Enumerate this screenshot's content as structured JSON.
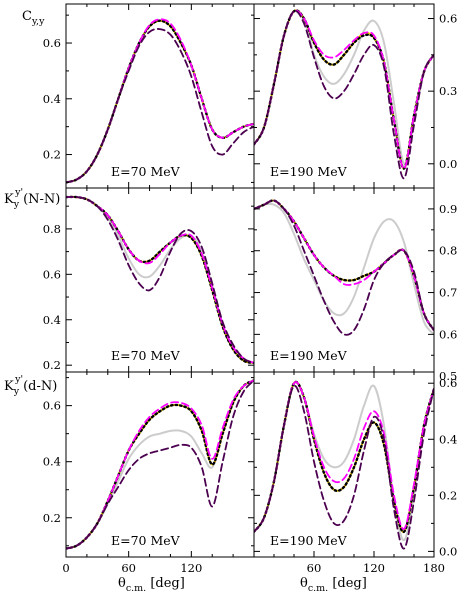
{
  "figure": {
    "xlabel_main": "θ",
    "xlabel_sub": "c.m.",
    "xlabel_unit": " [deg]",
    "row_labels": [
      {
        "main": "C",
        "sub": "y,y",
        "sup": "",
        "tail": ""
      },
      {
        "main": "K",
        "sub": "y",
        "sup": "y'",
        "tail": "(N-N)"
      },
      {
        "main": "K",
        "sub": "y",
        "sup": "y'",
        "tail": "(d-N)"
      }
    ]
  },
  "chart_data": [
    {
      "type": "line",
      "panel": "row1-left",
      "energy_label": "E=70 MeV",
      "xlim": [
        0,
        180
      ],
      "ylim": [
        0.08,
        0.74
      ],
      "xticks": [
        0,
        60,
        120
      ],
      "yticks": [
        0.2,
        0.4,
        0.6
      ],
      "ytick_side": "left",
      "x": [
        0,
        10,
        20,
        30,
        40,
        50,
        60,
        70,
        80,
        90,
        100,
        110,
        120,
        130,
        140,
        150,
        160,
        170,
        180
      ],
      "series": [
        {
          "color": "#cccccc",
          "dash": "solid",
          "values": [
            0.1,
            0.11,
            0.14,
            0.2,
            0.29,
            0.4,
            0.51,
            0.6,
            0.66,
            0.68,
            0.66,
            0.6,
            0.52,
            0.4,
            0.29,
            0.26,
            0.28,
            0.3,
            0.31
          ]
        },
        {
          "color": "#ffd700",
          "dash": "solid",
          "values": [
            0.1,
            0.11,
            0.14,
            0.2,
            0.29,
            0.4,
            0.51,
            0.6,
            0.66,
            0.68,
            0.66,
            0.6,
            0.52,
            0.4,
            0.29,
            0.26,
            0.28,
            0.3,
            0.31
          ]
        },
        {
          "color": "#000000",
          "dash": "dot",
          "values": [
            0.1,
            0.11,
            0.14,
            0.2,
            0.29,
            0.4,
            0.51,
            0.6,
            0.66,
            0.68,
            0.66,
            0.6,
            0.52,
            0.4,
            0.29,
            0.26,
            0.28,
            0.3,
            0.31
          ]
        },
        {
          "color": "#ff00ff",
          "dash": "dash",
          "values": [
            0.1,
            0.11,
            0.14,
            0.2,
            0.29,
            0.4,
            0.51,
            0.6,
            0.665,
            0.685,
            0.67,
            0.61,
            0.52,
            0.4,
            0.29,
            0.26,
            0.28,
            0.3,
            0.31
          ]
        },
        {
          "color": "#4b0050",
          "dash": "dash",
          "values": [
            0.1,
            0.11,
            0.14,
            0.2,
            0.29,
            0.4,
            0.5,
            0.59,
            0.64,
            0.65,
            0.63,
            0.57,
            0.48,
            0.35,
            0.23,
            0.2,
            0.24,
            0.28,
            0.3
          ]
        }
      ]
    },
    {
      "type": "line",
      "panel": "row1-right",
      "energy_label": "E=190 MeV",
      "xlim": [
        0,
        180
      ],
      "ylim": [
        -0.1,
        0.66
      ],
      "xticks": [
        60,
        120,
        180
      ],
      "yticks": [
        0.0,
        0.3,
        0.6
      ],
      "ytick_side": "right",
      "x": [
        0,
        10,
        20,
        30,
        40,
        50,
        60,
        70,
        80,
        90,
        100,
        110,
        120,
        130,
        140,
        150,
        160,
        170,
        180
      ],
      "series": [
        {
          "color": "#cccccc",
          "dash": "solid",
          "values": [
            0.08,
            0.15,
            0.33,
            0.53,
            0.63,
            0.6,
            0.45,
            0.36,
            0.33,
            0.37,
            0.45,
            0.55,
            0.59,
            0.5,
            0.25,
            0.0,
            0.18,
            0.38,
            0.45
          ]
        },
        {
          "color": "#ffd700",
          "dash": "solid",
          "values": [
            0.08,
            0.15,
            0.33,
            0.53,
            0.63,
            0.6,
            0.5,
            0.43,
            0.41,
            0.45,
            0.5,
            0.54,
            0.52,
            0.42,
            0.18,
            -0.02,
            0.2,
            0.38,
            0.45
          ]
        },
        {
          "color": "#000000",
          "dash": "dot",
          "values": [
            0.08,
            0.15,
            0.33,
            0.53,
            0.63,
            0.6,
            0.5,
            0.43,
            0.41,
            0.45,
            0.5,
            0.53,
            0.52,
            0.42,
            0.18,
            -0.02,
            0.2,
            0.38,
            0.45
          ]
        },
        {
          "color": "#ff00ff",
          "dash": "dash",
          "values": [
            0.08,
            0.15,
            0.33,
            0.53,
            0.63,
            0.6,
            0.51,
            0.45,
            0.44,
            0.47,
            0.51,
            0.54,
            0.53,
            0.42,
            0.18,
            -0.02,
            0.2,
            0.38,
            0.45
          ]
        },
        {
          "color": "#4b0050",
          "dash": "dash",
          "values": [
            0.08,
            0.15,
            0.33,
            0.53,
            0.63,
            0.58,
            0.44,
            0.32,
            0.27,
            0.3,
            0.37,
            0.45,
            0.49,
            0.4,
            0.12,
            -0.06,
            0.16,
            0.38,
            0.45
          ]
        }
      ]
    },
    {
      "type": "line",
      "panel": "row2-left",
      "energy_label": "E=70 MeV",
      "xlim": [
        0,
        180
      ],
      "ylim": [
        0.17,
        0.98
      ],
      "xticks": [
        0,
        60,
        120
      ],
      "yticks": [
        0.2,
        0.4,
        0.6,
        0.8
      ],
      "ytick_side": "left",
      "x": [
        0,
        10,
        20,
        30,
        40,
        50,
        60,
        70,
        80,
        90,
        100,
        110,
        120,
        130,
        140,
        150,
        160,
        170,
        180
      ],
      "series": [
        {
          "color": "#cccccc",
          "dash": "solid",
          "values": [
            0.94,
            0.94,
            0.93,
            0.9,
            0.85,
            0.77,
            0.67,
            0.6,
            0.59,
            0.64,
            0.71,
            0.76,
            0.77,
            0.7,
            0.55,
            0.38,
            0.28,
            0.23,
            0.21
          ]
        },
        {
          "color": "#ffd700",
          "dash": "solid",
          "values": [
            0.94,
            0.94,
            0.93,
            0.9,
            0.86,
            0.79,
            0.71,
            0.66,
            0.66,
            0.7,
            0.74,
            0.77,
            0.76,
            0.68,
            0.53,
            0.37,
            0.27,
            0.22,
            0.21
          ]
        },
        {
          "color": "#000000",
          "dash": "dot",
          "values": [
            0.94,
            0.94,
            0.93,
            0.9,
            0.86,
            0.79,
            0.71,
            0.66,
            0.66,
            0.7,
            0.74,
            0.77,
            0.76,
            0.68,
            0.53,
            0.37,
            0.27,
            0.22,
            0.21
          ]
        },
        {
          "color": "#ff00ff",
          "dash": "dash",
          "values": [
            0.94,
            0.94,
            0.93,
            0.9,
            0.86,
            0.79,
            0.71,
            0.66,
            0.65,
            0.69,
            0.74,
            0.77,
            0.77,
            0.69,
            0.54,
            0.38,
            0.28,
            0.23,
            0.21
          ]
        },
        {
          "color": "#4b0050",
          "dash": "dash",
          "values": [
            0.94,
            0.94,
            0.93,
            0.9,
            0.84,
            0.75,
            0.64,
            0.56,
            0.53,
            0.59,
            0.7,
            0.78,
            0.79,
            0.72,
            0.56,
            0.39,
            0.29,
            0.23,
            0.21
          ]
        }
      ]
    },
    {
      "type": "line",
      "panel": "row2-right",
      "energy_label": "E=190 MeV",
      "xlim": [
        0,
        180
      ],
      "ylim": [
        0.51,
        0.95
      ],
      "xticks": [
        60,
        120,
        180
      ],
      "yticks": [
        0.5,
        0.6,
        0.7,
        0.8,
        0.9
      ],
      "ytick_side": "right",
      "x": [
        0,
        10,
        20,
        30,
        40,
        50,
        60,
        70,
        80,
        90,
        100,
        110,
        120,
        130,
        140,
        150,
        160,
        170,
        180
      ],
      "series": [
        {
          "color": "#cccccc",
          "dash": "solid",
          "values": [
            0.9,
            0.91,
            0.91,
            0.89,
            0.84,
            0.78,
            0.73,
            0.68,
            0.65,
            0.65,
            0.69,
            0.76,
            0.83,
            0.87,
            0.87,
            0.82,
            0.72,
            0.63,
            0.6
          ]
        },
        {
          "color": "#ffd700",
          "dash": "solid",
          "values": [
            0.9,
            0.91,
            0.92,
            0.9,
            0.87,
            0.83,
            0.79,
            0.76,
            0.74,
            0.73,
            0.73,
            0.74,
            0.75,
            0.77,
            0.79,
            0.8,
            0.74,
            0.65,
            0.61
          ]
        },
        {
          "color": "#000000",
          "dash": "dot",
          "values": [
            0.9,
            0.91,
            0.92,
            0.9,
            0.87,
            0.83,
            0.79,
            0.76,
            0.74,
            0.73,
            0.73,
            0.74,
            0.75,
            0.77,
            0.79,
            0.8,
            0.74,
            0.65,
            0.61
          ]
        },
        {
          "color": "#ff00ff",
          "dash": "dash",
          "values": [
            0.9,
            0.91,
            0.92,
            0.9,
            0.87,
            0.83,
            0.79,
            0.76,
            0.74,
            0.72,
            0.72,
            0.73,
            0.75,
            0.77,
            0.79,
            0.8,
            0.74,
            0.65,
            0.61
          ]
        },
        {
          "color": "#4b0050",
          "dash": "dash",
          "values": [
            0.9,
            0.91,
            0.92,
            0.9,
            0.86,
            0.8,
            0.74,
            0.68,
            0.63,
            0.6,
            0.61,
            0.66,
            0.73,
            0.77,
            0.79,
            0.8,
            0.75,
            0.65,
            0.61
          ]
        }
      ]
    },
    {
      "type": "line",
      "panel": "row3-left",
      "energy_label": "E=70 MeV",
      "xlim": [
        0,
        180
      ],
      "ylim": [
        0.06,
        0.72
      ],
      "xticks": [
        0,
        60,
        120
      ],
      "yticks": [
        0.2,
        0.4,
        0.6
      ],
      "ytick_side": "left",
      "x": [
        0,
        10,
        20,
        30,
        40,
        50,
        60,
        70,
        80,
        90,
        100,
        110,
        120,
        130,
        140,
        150,
        160,
        170,
        180
      ],
      "series": [
        {
          "color": "#cccccc",
          "dash": "solid",
          "values": [
            0.09,
            0.1,
            0.13,
            0.18,
            0.25,
            0.33,
            0.41,
            0.46,
            0.49,
            0.5,
            0.51,
            0.51,
            0.49,
            0.43,
            0.38,
            0.5,
            0.61,
            0.67,
            0.69
          ]
        },
        {
          "color": "#ffd700",
          "dash": "solid",
          "values": [
            0.09,
            0.1,
            0.13,
            0.18,
            0.26,
            0.35,
            0.44,
            0.5,
            0.55,
            0.58,
            0.6,
            0.6,
            0.58,
            0.51,
            0.39,
            0.5,
            0.61,
            0.67,
            0.69
          ]
        },
        {
          "color": "#000000",
          "dash": "dot",
          "values": [
            0.09,
            0.1,
            0.13,
            0.18,
            0.26,
            0.35,
            0.44,
            0.5,
            0.55,
            0.58,
            0.6,
            0.6,
            0.58,
            0.51,
            0.39,
            0.5,
            0.61,
            0.67,
            0.69
          ]
        },
        {
          "color": "#ff00ff",
          "dash": "dash",
          "values": [
            0.09,
            0.1,
            0.13,
            0.18,
            0.26,
            0.35,
            0.44,
            0.51,
            0.56,
            0.59,
            0.61,
            0.61,
            0.59,
            0.53,
            0.41,
            0.52,
            0.62,
            0.67,
            0.69
          ]
        },
        {
          "color": "#4b0050",
          "dash": "dash",
          "values": [
            0.09,
            0.1,
            0.13,
            0.18,
            0.25,
            0.31,
            0.37,
            0.41,
            0.43,
            0.44,
            0.45,
            0.46,
            0.45,
            0.38,
            0.24,
            0.4,
            0.56,
            0.65,
            0.69
          ]
        }
      ]
    },
    {
      "type": "line",
      "panel": "row3-right",
      "energy_label": "E=190 MeV",
      "xlim": [
        0,
        180
      ],
      "ylim": [
        -0.02,
        0.64
      ],
      "xticks": [
        0,
        60,
        120,
        180
      ],
      "yticks": [
        0.0,
        0.2,
        0.4,
        0.6
      ],
      "ytick_side": "right",
      "x": [
        0,
        10,
        20,
        30,
        40,
        50,
        60,
        70,
        80,
        90,
        100,
        110,
        120,
        130,
        140,
        150,
        160,
        170,
        180
      ],
      "series": [
        {
          "color": "#cccccc",
          "dash": "solid",
          "values": [
            0.07,
            0.12,
            0.25,
            0.45,
            0.6,
            0.55,
            0.42,
            0.33,
            0.3,
            0.32,
            0.4,
            0.52,
            0.59,
            0.45,
            0.18,
            0.04,
            0.2,
            0.45,
            0.58
          ]
        },
        {
          "color": "#ffd700",
          "dash": "solid",
          "values": [
            0.07,
            0.12,
            0.25,
            0.45,
            0.6,
            0.55,
            0.4,
            0.28,
            0.22,
            0.23,
            0.3,
            0.4,
            0.46,
            0.38,
            0.18,
            0.07,
            0.23,
            0.45,
            0.58
          ]
        },
        {
          "color": "#000000",
          "dash": "dot",
          "values": [
            0.07,
            0.12,
            0.25,
            0.45,
            0.6,
            0.55,
            0.4,
            0.28,
            0.22,
            0.23,
            0.3,
            0.4,
            0.46,
            0.38,
            0.18,
            0.07,
            0.23,
            0.45,
            0.58
          ]
        },
        {
          "color": "#ff00ff",
          "dash": "dash",
          "values": [
            0.07,
            0.12,
            0.25,
            0.45,
            0.6,
            0.55,
            0.41,
            0.3,
            0.25,
            0.26,
            0.33,
            0.44,
            0.5,
            0.42,
            0.2,
            0.08,
            0.24,
            0.45,
            0.58
          ]
        },
        {
          "color": "#4b0050",
          "dash": "dash",
          "values": [
            0.07,
            0.12,
            0.25,
            0.45,
            0.59,
            0.5,
            0.32,
            0.18,
            0.1,
            0.11,
            0.2,
            0.36,
            0.48,
            0.4,
            0.15,
            0.01,
            0.18,
            0.42,
            0.58
          ]
        }
      ]
    }
  ]
}
